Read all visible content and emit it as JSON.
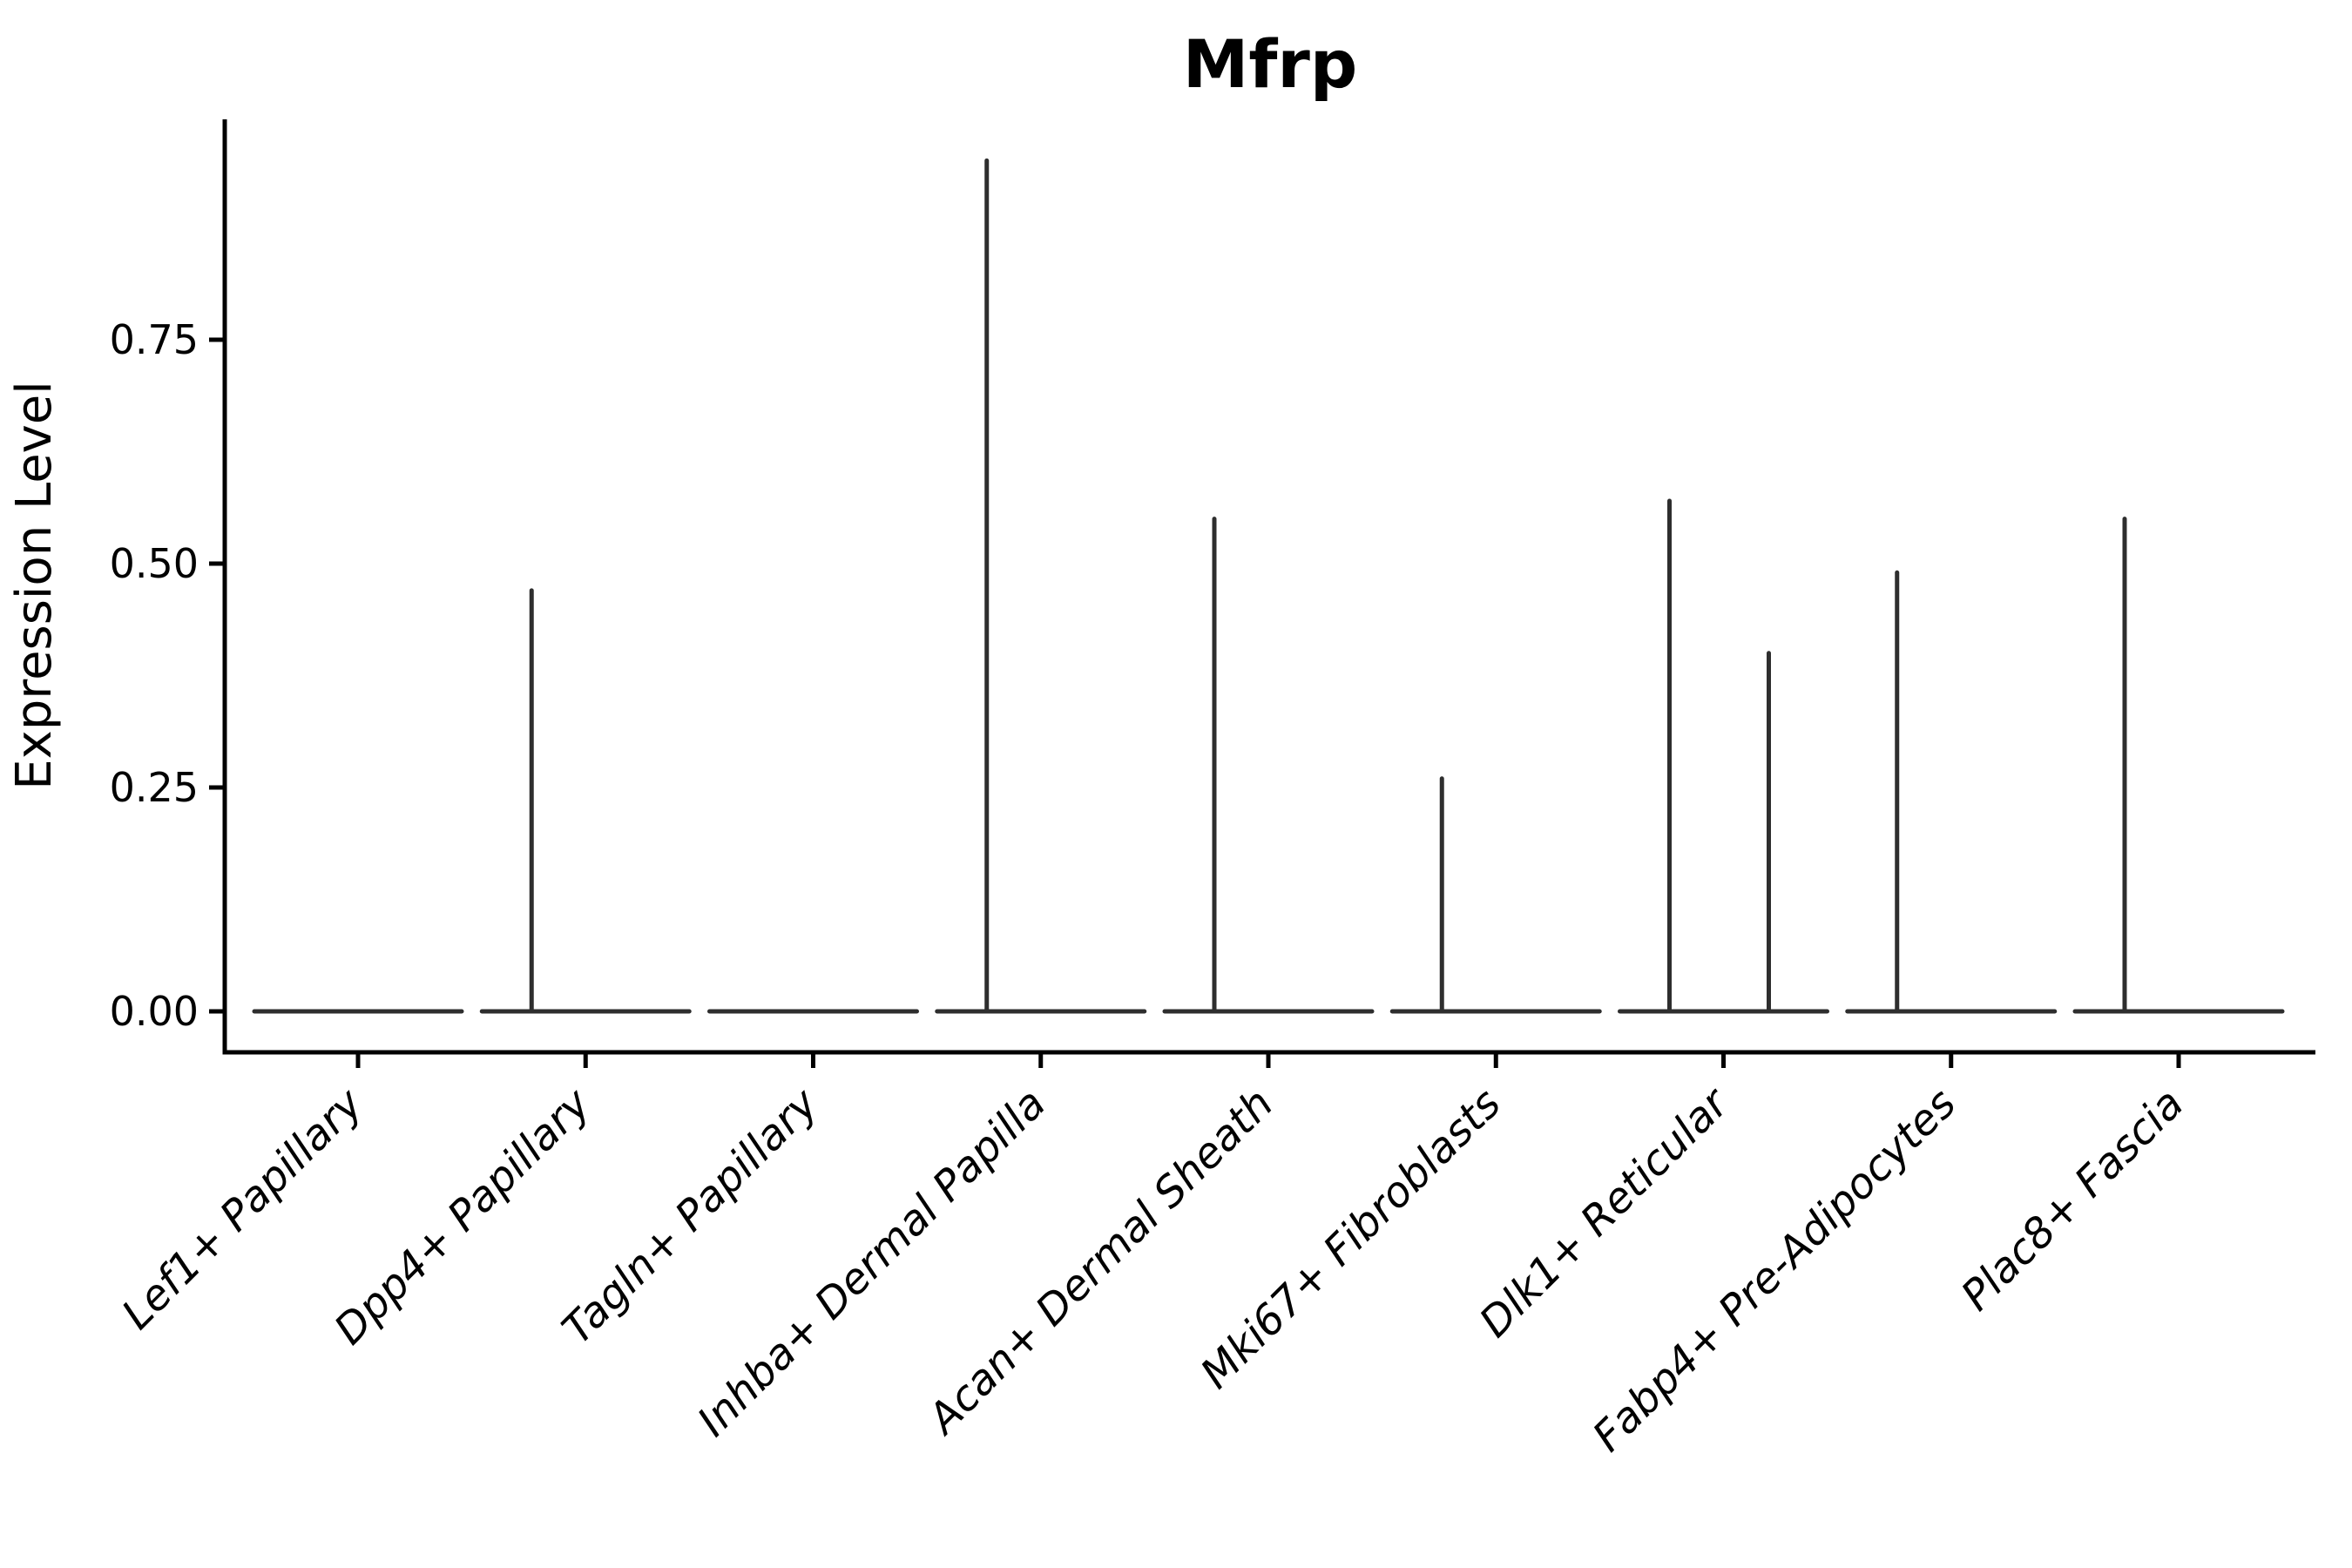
{
  "chart_data": {
    "type": "violin",
    "title": "Mfrp",
    "xlabel": "",
    "ylabel": "Expression Level",
    "ylim": [
      0,
      1.0
    ],
    "yticks": [
      0.0,
      0.25,
      0.5,
      0.75
    ],
    "ytick_labels": [
      "0.00",
      "0.25",
      "0.50",
      "0.75"
    ],
    "grid": false,
    "legend_position": "none",
    "categories": [
      "Lef1+ Papillary",
      "Dpp4+ Papillary",
      "Tagln+ Papillary",
      "Inhba+ Dermal Papilla",
      "Acan+ Dermal Sheath",
      "Mki67+ Fibroblasts",
      "Dlk1+ Reticular",
      "Fabp4+ Pre-Adipocytes",
      "Plac8+ Fascia"
    ],
    "violins": [
      {
        "category": "Lef1+ Papillary",
        "baseline": 0.0,
        "max_expression": 0.0,
        "spikes": []
      },
      {
        "category": "Dpp4+ Papillary",
        "baseline": 0.0,
        "max_expression": 0.47,
        "spikes": [
          {
            "group": "left",
            "value": 0.47
          }
        ]
      },
      {
        "category": "Tagln+ Papillary",
        "baseline": 0.0,
        "max_expression": 0.0,
        "spikes": []
      },
      {
        "category": "Inhba+ Dermal Papilla",
        "baseline": 0.0,
        "max_expression": 0.95,
        "spikes": [
          {
            "group": "left",
            "value": 0.95
          }
        ]
      },
      {
        "category": "Acan+ Dermal Sheath",
        "baseline": 0.0,
        "max_expression": 0.55,
        "spikes": [
          {
            "group": "left",
            "value": 0.55
          }
        ]
      },
      {
        "category": "Mki67+ Fibroblasts",
        "baseline": 0.0,
        "max_expression": 0.26,
        "spikes": [
          {
            "group": "left",
            "value": 0.26
          }
        ]
      },
      {
        "category": "Dlk1+ Reticular",
        "baseline": 0.0,
        "max_expression": 0.57,
        "spikes": [
          {
            "group": "left",
            "value": 0.57
          },
          {
            "group": "right",
            "value": 0.4
          }
        ]
      },
      {
        "category": "Fabp4+ Pre-Adipocytes",
        "baseline": 0.0,
        "max_expression": 0.49,
        "spikes": [
          {
            "group": "left",
            "value": 0.49
          }
        ]
      },
      {
        "category": "Plac8+ Fascia",
        "baseline": 0.0,
        "max_expression": 0.55,
        "spikes": [
          {
            "group": "left",
            "value": 0.55
          }
        ]
      }
    ]
  },
  "style": {
    "violin_line_color": "#2e2e2e",
    "axis_color": "#000000",
    "background_color": "#ffffff"
  }
}
